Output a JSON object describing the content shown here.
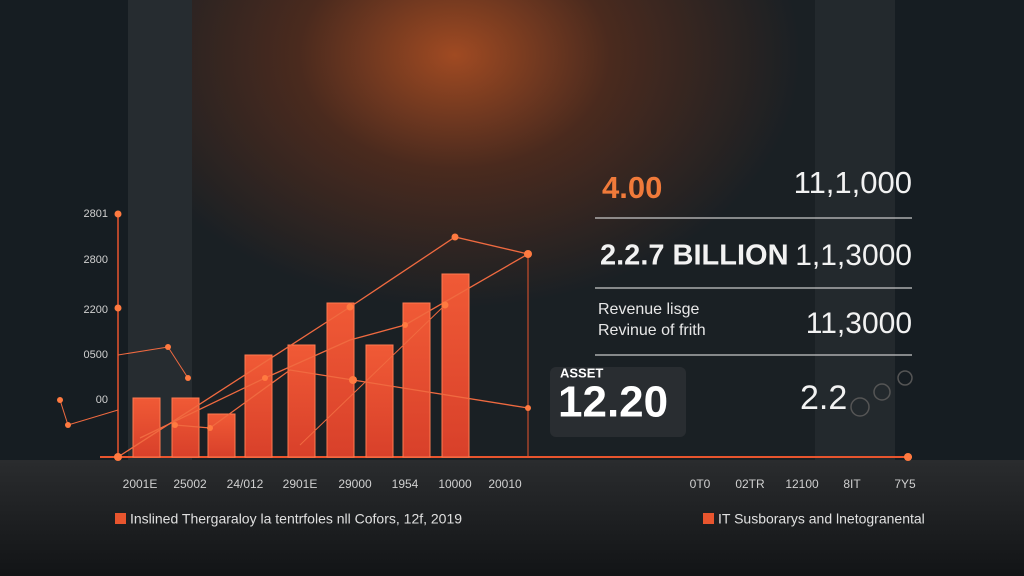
{
  "y_axis_labels": [
    "2801",
    "2800",
    "2200",
    "0500",
    "00"
  ],
  "x_axis_labels": [
    "2001E",
    "25002",
    "24/012",
    "2901E",
    "29000",
    "1954",
    "10000",
    "20010"
  ],
  "right_axis_labels": [
    "0T0",
    "02TR",
    "12100",
    "8IT",
    "7Y5"
  ],
  "panel": {
    "row1": {
      "left": "4.00",
      "right": "11,1,000"
    },
    "row2": {
      "left": "2.2.7 BILLION",
      "right": "1,1,3000"
    },
    "row3": {
      "left_line1": "Revenue lisge",
      "left_line2": "Revinue of frith",
      "right": "11,3000"
    },
    "asset": {
      "label": "ASSET",
      "value": "12.20"
    },
    "row4": {
      "right": "2.2"
    }
  },
  "legend": {
    "left": "Inslined Thergaraloy la tentrfoles nll Cofors, 12f, 2019",
    "right": "IT Susborarys and lnetogranental"
  }
}
